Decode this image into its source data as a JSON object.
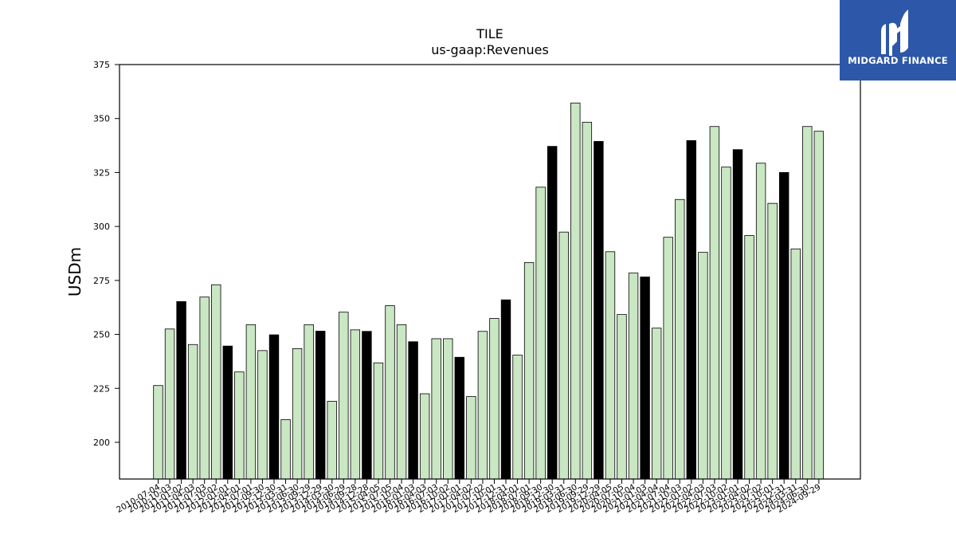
{
  "logo": {
    "text": "MIDGARD FINANCE"
  },
  "colors": {
    "normal_fill": "#c9e7c2",
    "highlight_fill": "#000000",
    "edge": "#000000",
    "logo_bg": "#2d57a8"
  },
  "chart_data": {
    "type": "bar",
    "title": "TILE",
    "subtitle": "us-gaap:Revenues",
    "ylabel": "USDm",
    "xlabel": "",
    "ylim": [
      183,
      375
    ],
    "yticks": [
      200,
      225,
      250,
      275,
      300,
      325,
      350,
      375
    ],
    "grid": false,
    "categories": [
      "2010-07-04",
      "2010-10-03",
      "2011-01-02",
      "2011-04-03",
      "2011-07-03",
      "2011-10-02",
      "2012-01-01",
      "2012-04-01",
      "2012-07-01",
      "2012-09-30",
      "2012-12-30",
      "2013-03-31",
      "2013-06-30",
      "2013-09-29",
      "2013-12-29",
      "2014-03-30",
      "2014-06-29",
      "2014-09-28",
      "2014-12-28",
      "2015-04-05",
      "2015-07-05",
      "2015-10-04",
      "2016-01-03",
      "2016-04-03",
      "2016-07-03",
      "2016-10-02",
      "2017-01-01",
      "2017-04-02",
      "2017-07-02",
      "2017-10-01",
      "2017-12-31",
      "2018-04-01",
      "2018-07-01",
      "2018-09-30",
      "2018-12-30",
      "2019-03-31",
      "2019-06-30",
      "2019-09-29",
      "2019-12-29",
      "2020-04-05",
      "2020-07-05",
      "2020-10-04",
      "2021-01-03",
      "2021-04-04",
      "2021-07-04",
      "2021-10-03",
      "2022-01-02",
      "2022-04-03",
      "2022-07-03",
      "2022-10-02",
      "2023-01-01",
      "2023-04-02",
      "2023-07-02",
      "2023-10-01",
      "2023-12-31",
      "2024-03-31",
      "2024-06-30",
      "2024-09-29"
    ],
    "values": [
      226.3,
      252.5,
      265.2,
      245.3,
      267.3,
      273.0,
      244.6,
      232.6,
      254.5,
      242.5,
      249.8,
      210.5,
      243.4,
      254.5,
      251.5,
      219.0,
      260.3,
      252.1,
      251.4,
      236.8,
      263.3,
      254.5,
      246.6,
      222.5,
      248.0,
      248.0,
      239.4,
      221.2,
      251.4,
      257.4,
      266.0,
      240.4,
      283.3,
      318.2,
      337.1,
      297.4,
      357.2,
      348.3,
      339.4,
      288.3,
      259.2,
      278.4,
      276.6,
      252.9,
      295.0,
      312.5,
      339.8,
      288.0,
      346.3,
      327.5,
      335.6,
      295.8,
      329.3,
      310.7,
      325.0,
      289.6,
      346.3,
      344.1
    ],
    "highlight": [
      false,
      false,
      true,
      false,
      false,
      false,
      true,
      false,
      false,
      false,
      true,
      false,
      false,
      false,
      true,
      false,
      false,
      false,
      true,
      false,
      false,
      false,
      true,
      false,
      false,
      false,
      true,
      false,
      false,
      false,
      true,
      false,
      false,
      false,
      true,
      false,
      false,
      false,
      true,
      false,
      false,
      false,
      true,
      false,
      false,
      false,
      true,
      false,
      false,
      false,
      true,
      false,
      false,
      false,
      true,
      false,
      false,
      false
    ]
  }
}
